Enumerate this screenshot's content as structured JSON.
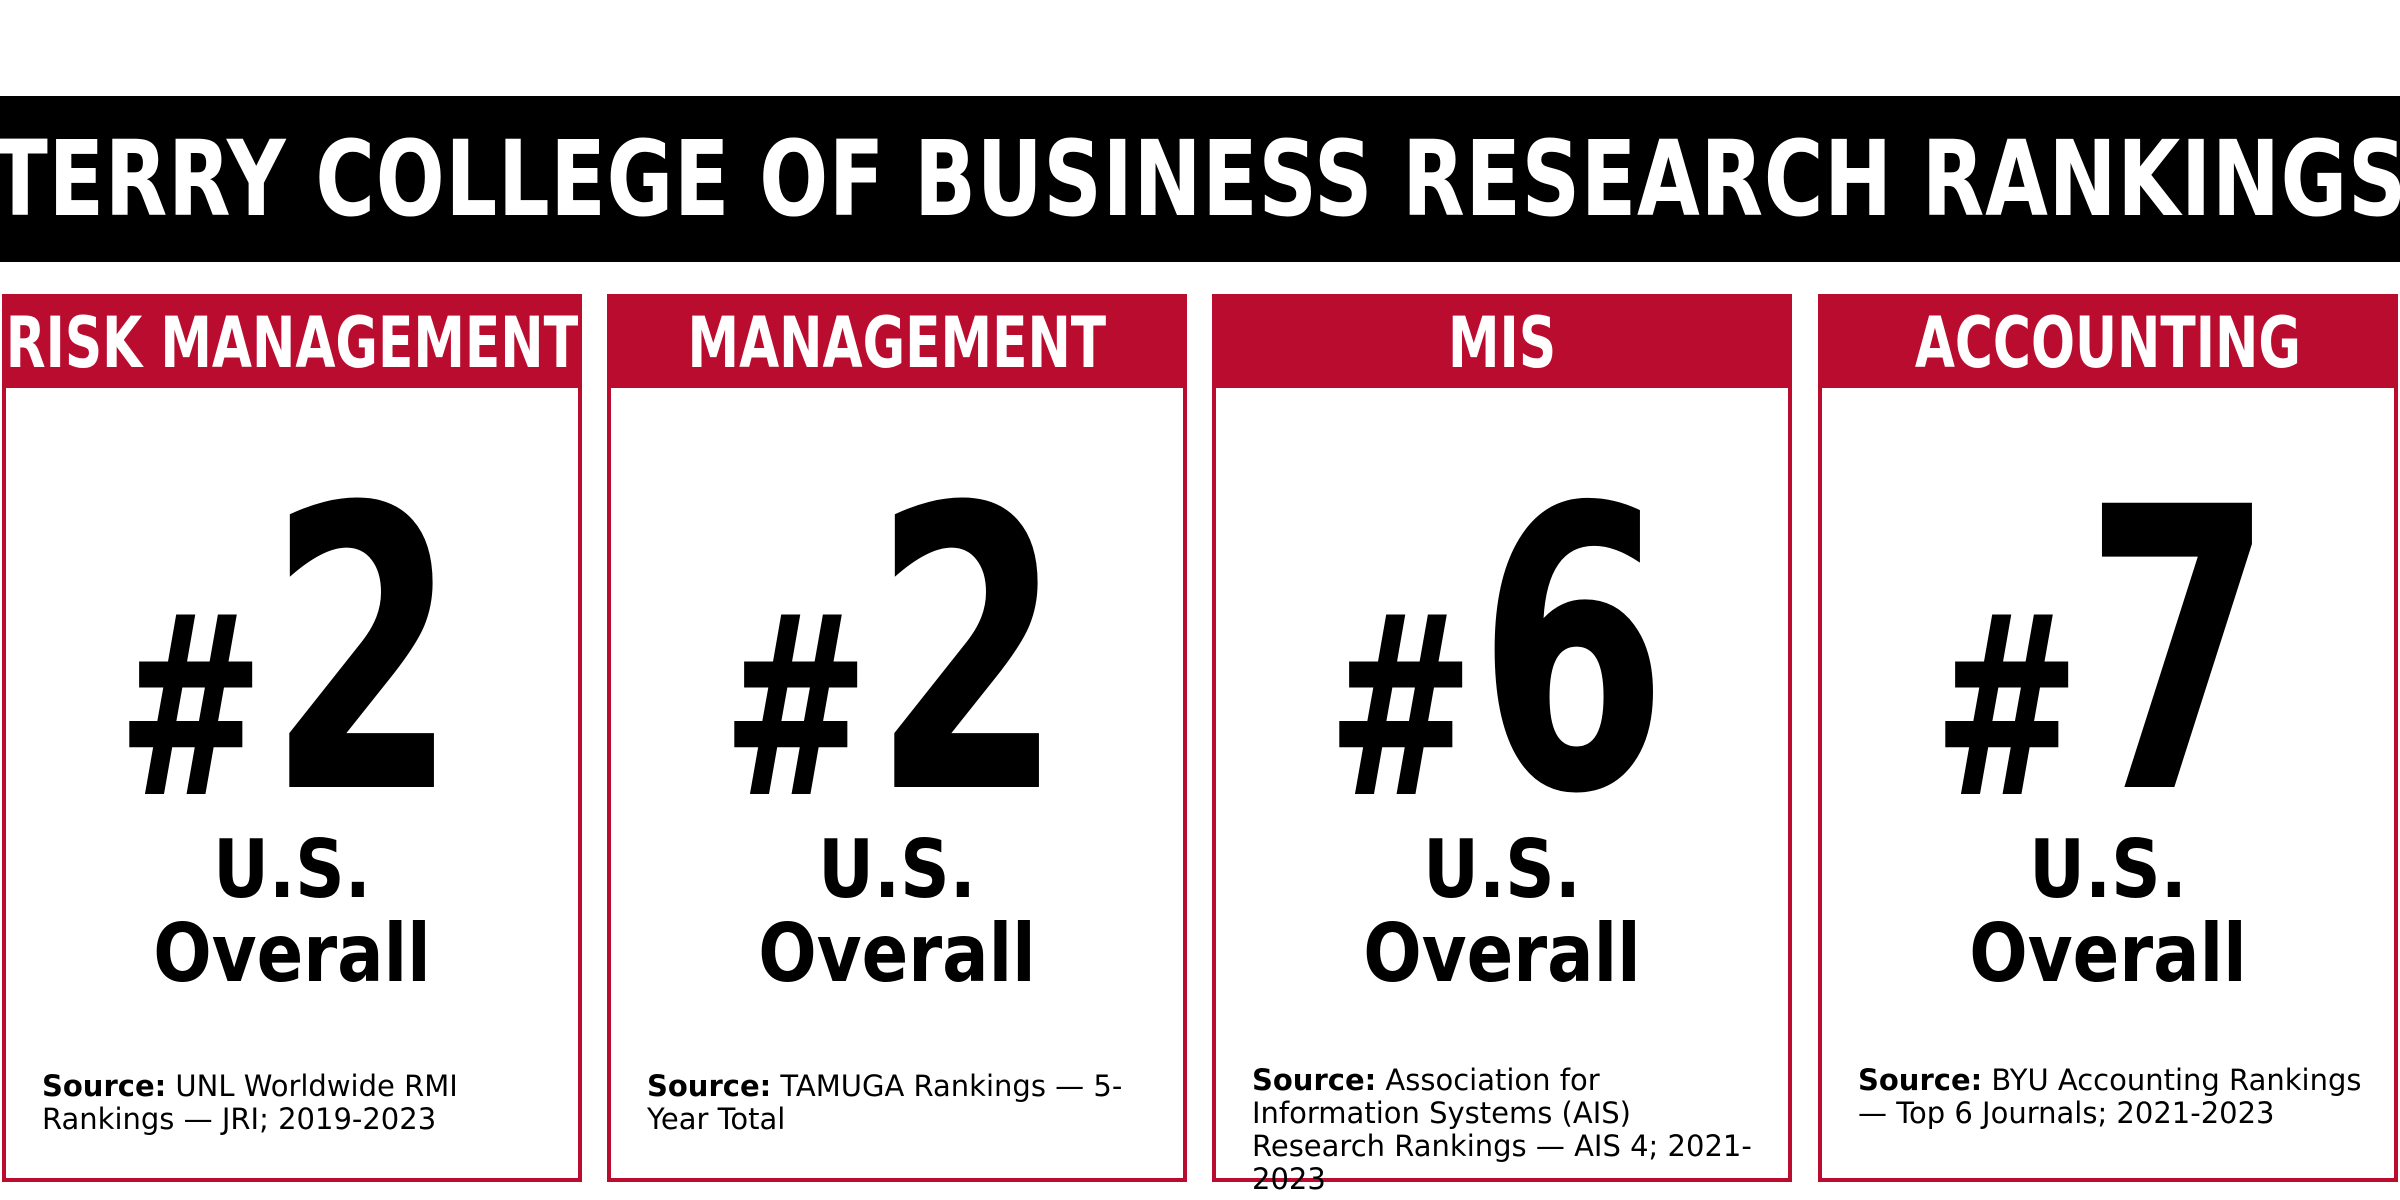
{
  "banner": {
    "title": "TERRY COLLEGE OF BUSINESS RESEARCH RANKINGS"
  },
  "colors": {
    "accent_red": "#ba0c2f",
    "banner_black": "#000000"
  },
  "cards": [
    {
      "category": "RISK MANAGEMENT",
      "hash": "#",
      "rank": "2",
      "scope_line1": "U.S.",
      "scope_line2": "Overall",
      "source_label": "Source:",
      "source_text": " UNL Worldwide RMI Rankings — JRI; 2019-2023"
    },
    {
      "category": "MANAGEMENT",
      "hash": "#",
      "rank": "2",
      "scope_line1": "U.S.",
      "scope_line2": "Overall",
      "source_label": "Source:",
      "source_text": " TAMUGA Rankings — 5-Year Total"
    },
    {
      "category": "MIS",
      "hash": "#",
      "rank": "6",
      "scope_line1": "U.S.",
      "scope_line2": "Overall",
      "source_label": "Source:",
      "source_text": " Association for Information Systems (AIS) Research Rankings — AIS 4; 2021-2023"
    },
    {
      "category": "ACCOUNTING",
      "hash": "#",
      "rank": "7",
      "scope_line1": "U.S.",
      "scope_line2": "Overall",
      "source_label": "Source:",
      "source_text": " BYU Accounting Rankings — Top 6 Journals; 2021-2023"
    }
  ]
}
